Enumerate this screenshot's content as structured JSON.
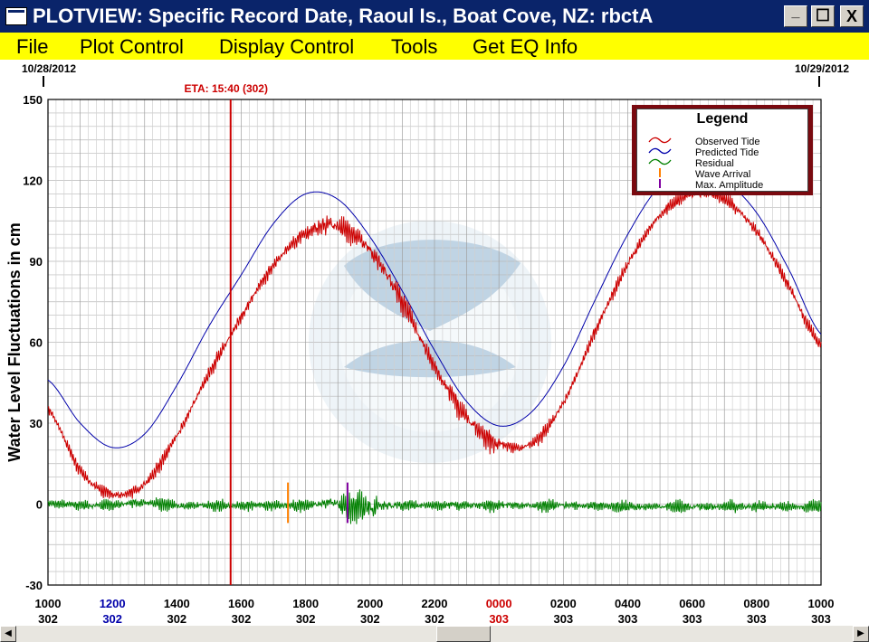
{
  "window": {
    "title": "PLOTVIEW: Specific Record Date, Raoul Is., Boat Cove, NZ: rbctA",
    "minimize": "_",
    "maximize": "☐",
    "close": "X"
  },
  "menu": [
    "File",
    "Plot Control",
    "Display Control",
    "Tools",
    "Get EQ Info"
  ],
  "colors": {
    "observed": "#cc0000",
    "predicted": "#0000aa",
    "residual": "#008000",
    "wave_arrival": "#ff8000",
    "max_amplitude": "#8000a0",
    "eta": "#cc0000",
    "legend_border": "#7a0a10"
  },
  "chart_data": {
    "type": "line",
    "ylabel": "Water Level Fluctuations in cm",
    "ylim": [
      -30,
      150
    ],
    "yticks": [
      150,
      120,
      90,
      60,
      30,
      0,
      -30
    ],
    "xlim": [
      0,
      24
    ],
    "grid": true,
    "date_labels": {
      "start": "10/28/2012",
      "end": "10/29/2012"
    },
    "eta_label": "ETA: 15:40 (302)",
    "eta_x": 5.67,
    "xticks": [
      {
        "time": "1000",
        "day": "302",
        "x": 0,
        "color": "#000000"
      },
      {
        "time": "1200",
        "day": "302",
        "x": 2,
        "color": "#0000aa"
      },
      {
        "time": "1400",
        "day": "302",
        "x": 4,
        "color": "#000000"
      },
      {
        "time": "1600",
        "day": "302",
        "x": 6,
        "color": "#000000"
      },
      {
        "time": "1800",
        "day": "302",
        "x": 8,
        "color": "#000000"
      },
      {
        "time": "2000",
        "day": "302",
        "x": 10,
        "color": "#000000"
      },
      {
        "time": "2200",
        "day": "302",
        "x": 12,
        "color": "#000000"
      },
      {
        "time": "0000",
        "day": "303",
        "x": 14,
        "color": "#cc0000"
      },
      {
        "time": "0200",
        "day": "303",
        "x": 16,
        "color": "#000000"
      },
      {
        "time": "0400",
        "day": "303",
        "x": 18,
        "color": "#000000"
      },
      {
        "time": "0600",
        "day": "303",
        "x": 20,
        "color": "#000000"
      },
      {
        "time": "0800",
        "day": "303",
        "x": 22,
        "color": "#000000"
      },
      {
        "time": "1000",
        "day": "303",
        "x": 24,
        "color": "#000000"
      }
    ],
    "series": [
      {
        "name": "Predicted Tide",
        "x": [
          0,
          1,
          2,
          3,
          4,
          5,
          6,
          7,
          8,
          9,
          10,
          11,
          12,
          13,
          14,
          15,
          16,
          17,
          18,
          19,
          20,
          21,
          22,
          23,
          24
        ],
        "values": [
          46,
          30,
          21,
          26,
          44,
          66,
          85,
          104,
          115,
          113,
          99,
          79,
          57,
          38,
          29,
          34,
          51,
          76,
          100,
          118,
          124,
          120,
          108,
          87,
          63
        ]
      },
      {
        "name": "Observed Tide",
        "x": [
          0,
          1,
          2,
          3,
          4,
          5,
          6,
          7,
          8,
          9,
          10,
          11,
          12,
          13,
          14,
          15,
          16,
          17,
          18,
          19,
          20,
          21,
          22,
          23,
          24
        ],
        "values": [
          36,
          13,
          4,
          8,
          26,
          49,
          70,
          89,
          101,
          104,
          95,
          76,
          52,
          33,
          23,
          23,
          38,
          65,
          90,
          108,
          116,
          114,
          102,
          82,
          60
        ]
      },
      {
        "name": "Residual",
        "x": [
          0,
          1,
          2,
          3,
          4,
          5,
          6,
          7,
          8,
          9,
          10,
          11,
          12,
          13,
          14,
          15,
          16,
          17,
          18,
          19,
          20,
          21,
          22,
          23,
          24
        ],
        "values": [
          1,
          0,
          0,
          1,
          0,
          0,
          0,
          0,
          0,
          1,
          0,
          0,
          0,
          0,
          0,
          0,
          0,
          0,
          0,
          0,
          0,
          0,
          0,
          0,
          0
        ]
      }
    ],
    "markers": [
      {
        "name": "Wave Arrival",
        "x": 7.45,
        "y_top": 8,
        "y_bottom": -7
      },
      {
        "name": "Max. Amplitude",
        "x": 9.3,
        "y_top": 8,
        "y_bottom": -7
      }
    ],
    "legend": {
      "title": "Legend",
      "entries": [
        "Observed Tide",
        "Predicted Tide",
        "Residual",
        "Wave Arrival",
        "Max. Amplitude"
      ],
      "placement": "top-right"
    }
  }
}
